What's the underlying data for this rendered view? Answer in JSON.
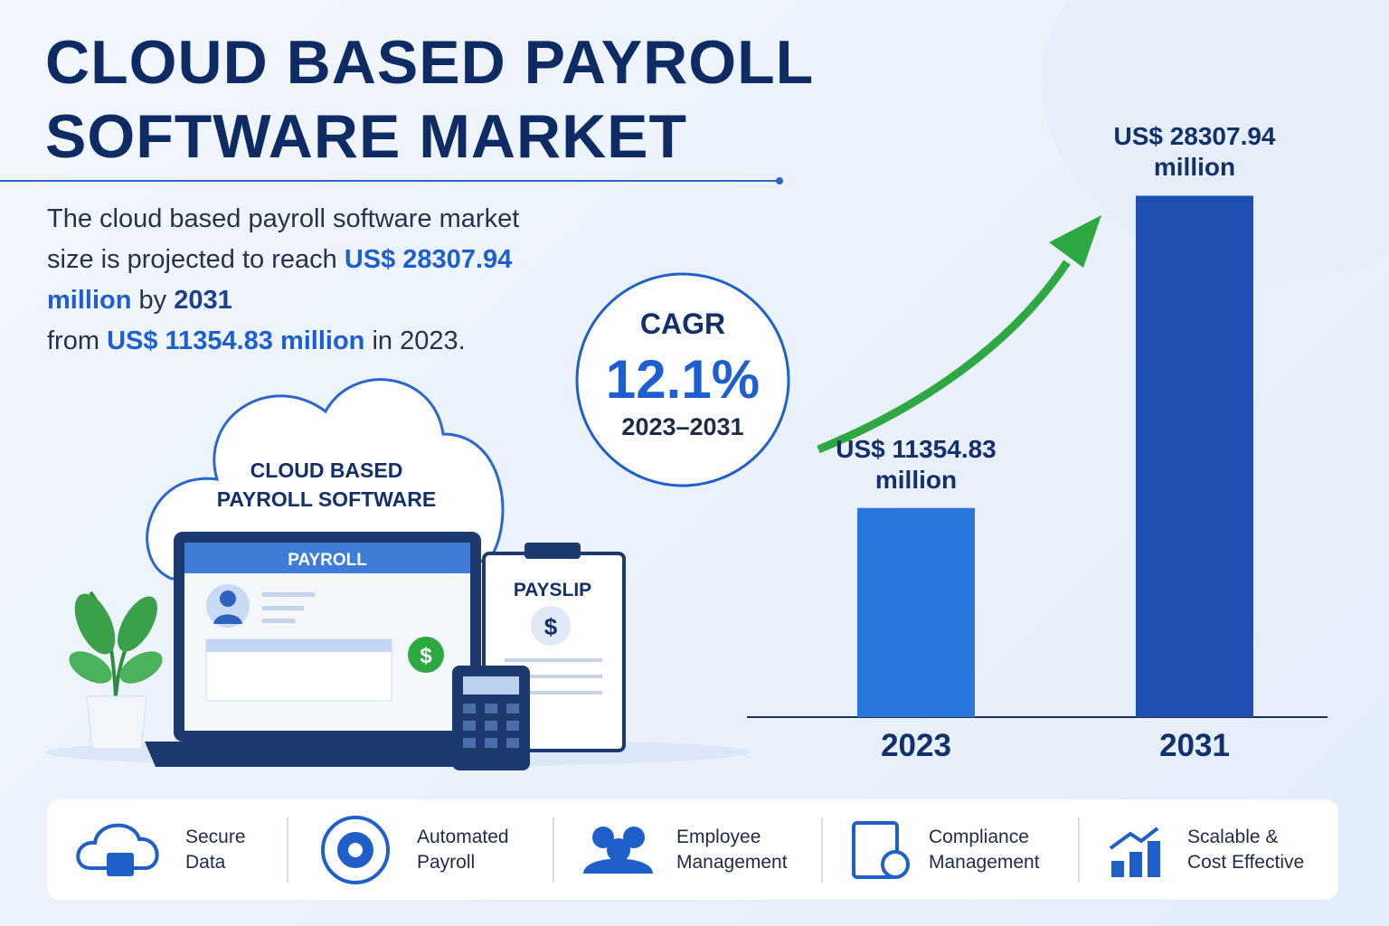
{
  "title_lines": [
    "CLOUD BASED PAYROLL",
    "SOFTWARE MARKET"
  ],
  "summary": [
    "The cloud based payroll software market size is projected to reach ",
    "US$ 28307.94 million",
    " by ",
    "2031",
    " from ",
    "US$ 11354.83 million",
    " in 2023."
  ],
  "cagr": {
    "label": "CAGR",
    "value": "12.1%",
    "period": "2023–2031"
  },
  "illustration": {
    "cloud_label": [
      "CLOUD BASED",
      "PAYROLL SOFTWARE"
    ],
    "screen_title": "PAYROLL",
    "payslip": "PAYSLIP",
    "dollar": "$"
  },
  "features": [
    [
      "Secure",
      "Data"
    ],
    [
      "Automated",
      "Payroll"
    ],
    [
      "Employee",
      "Management"
    ],
    [
      "Compliance",
      "Management"
    ],
    [
      "Scalable &",
      "Cost Effective"
    ]
  ],
  "chart_data": {
    "type": "bar",
    "categories": [
      "2023",
      "2031"
    ],
    "values": [
      11354.83,
      28307.94
    ],
    "value_labels": [
      "US$ 11354.83 million",
      "US$ 28307.94 million"
    ],
    "colors": [
      "#2a76dc",
      "#1f4fb2"
    ],
    "ylim": [
      0,
      30000
    ]
  }
}
